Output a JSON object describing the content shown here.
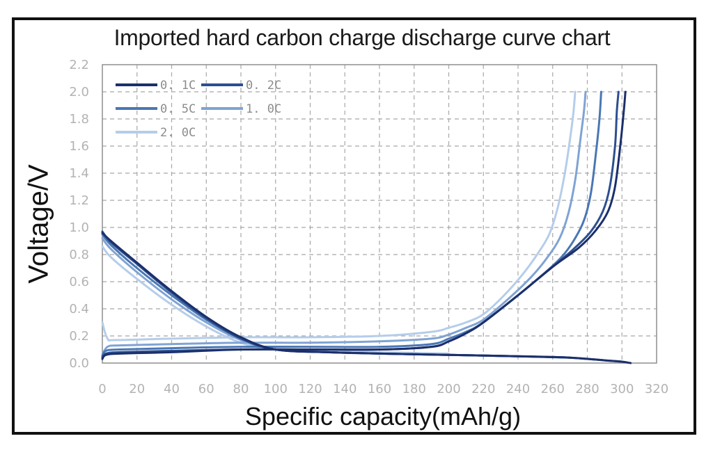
{
  "chart_data": {
    "type": "line",
    "title": "Imported hard carbon charge discharge curve chart",
    "xlabel": "Specific capacity(mAh/g)",
    "ylabel": "Voltage/V",
    "xlim": [
      0,
      320
    ],
    "ylim": [
      0,
      2.2
    ],
    "x_ticks": [
      0,
      20,
      40,
      60,
      80,
      100,
      120,
      140,
      160,
      180,
      200,
      220,
      240,
      260,
      280,
      300,
      320
    ],
    "y_ticks": [
      "0.0",
      "0.2",
      "0.4",
      "0.6",
      "0.8",
      "1.0",
      "1.2",
      "1.4",
      "1.6",
      "1.8",
      "2.0",
      "2.2"
    ],
    "grid": true,
    "legend_position": "top-left",
    "series": [
      {
        "name": "0. 1C",
        "color": "#1b2f6b",
        "discharge": {
          "x": [
            0,
            5,
            20,
            40,
            60,
            80,
            100,
            130,
            160,
            200,
            240,
            270,
            290,
            300,
            305
          ],
          "y": [
            0.96,
            0.9,
            0.74,
            0.53,
            0.34,
            0.19,
            0.1,
            0.08,
            0.07,
            0.06,
            0.05,
            0.04,
            0.02,
            0.01,
            0.0
          ]
        },
        "charge": {
          "x": [
            0,
            2,
            10,
            40,
            80,
            120,
            160,
            190,
            200,
            210,
            220,
            240,
            260,
            275,
            285,
            292,
            296,
            299,
            301,
            302
          ],
          "y": [
            0.03,
            0.06,
            0.07,
            0.08,
            0.1,
            0.1,
            0.1,
            0.12,
            0.16,
            0.22,
            0.3,
            0.5,
            0.71,
            0.85,
            0.98,
            1.12,
            1.3,
            1.6,
            1.85,
            2.0
          ]
        }
      },
      {
        "name": "0. 2C",
        "color": "#2c4f8f",
        "discharge": {
          "x": [
            0,
            5,
            20,
            40,
            60,
            80,
            100,
            130,
            160,
            200,
            240,
            270,
            290,
            300
          ],
          "y": [
            0.97,
            0.89,
            0.73,
            0.52,
            0.33,
            0.18,
            0.1,
            0.08,
            0.07,
            0.06,
            0.05,
            0.04,
            0.02,
            0.01
          ]
        },
        "charge": {
          "x": [
            0,
            2,
            10,
            40,
            80,
            120,
            160,
            190,
            200,
            210,
            220,
            240,
            260,
            272,
            282,
            289,
            293,
            296,
            297,
            298
          ],
          "y": [
            0.04,
            0.07,
            0.08,
            0.09,
            0.1,
            0.1,
            0.1,
            0.12,
            0.16,
            0.22,
            0.3,
            0.5,
            0.71,
            0.84,
            0.97,
            1.12,
            1.3,
            1.6,
            1.85,
            2.0
          ]
        }
      },
      {
        "name": "0. 5C",
        "color": "#4a77b4",
        "discharge": {
          "x": [
            0,
            5,
            20,
            40,
            60,
            80,
            100,
            130,
            160,
            200,
            240,
            270
          ],
          "y": [
            0.95,
            0.87,
            0.7,
            0.5,
            0.32,
            0.18,
            0.1,
            0.08,
            0.07,
            0.06,
            0.05,
            0.04
          ]
        },
        "charge": {
          "x": [
            0,
            2,
            10,
            40,
            80,
            120,
            160,
            190,
            200,
            210,
            220,
            240,
            255,
            265,
            272,
            278,
            282,
            285,
            287,
            288
          ],
          "y": [
            0.05,
            0.09,
            0.1,
            0.11,
            0.12,
            0.12,
            0.12,
            0.14,
            0.18,
            0.23,
            0.3,
            0.5,
            0.66,
            0.78,
            0.9,
            1.05,
            1.25,
            1.55,
            1.8,
            2.0
          ]
        }
      },
      {
        "name": "1. 0C",
        "color": "#7fa3d3",
        "discharge": {
          "x": [
            0,
            5,
            20,
            40,
            60,
            80,
            100,
            130,
            160,
            200,
            240
          ],
          "y": [
            0.92,
            0.84,
            0.67,
            0.47,
            0.3,
            0.17,
            0.1,
            0.08,
            0.07,
            0.06,
            0.05
          ]
        },
        "charge": {
          "x": [
            0,
            3,
            10,
            40,
            80,
            120,
            160,
            190,
            200,
            210,
            220,
            235,
            248,
            257,
            264,
            269,
            273,
            276,
            278,
            279
          ],
          "y": [
            0.06,
            0.12,
            0.13,
            0.14,
            0.15,
            0.15,
            0.16,
            0.18,
            0.21,
            0.26,
            0.32,
            0.48,
            0.64,
            0.78,
            0.92,
            1.1,
            1.35,
            1.65,
            1.85,
            2.0
          ]
        }
      },
      {
        "name": "2. 0C",
        "color": "#b5cdea",
        "discharge": {
          "x": [
            0,
            5,
            20,
            40,
            60,
            80,
            100,
            130,
            160,
            200
          ],
          "y": [
            0.86,
            0.78,
            0.62,
            0.43,
            0.27,
            0.15,
            0.1,
            0.09,
            0.08,
            0.07
          ]
        },
        "charge": {
          "x": [
            0,
            3,
            8,
            40,
            80,
            120,
            160,
            190,
            200,
            210,
            220,
            232,
            243,
            251,
            258,
            263,
            267,
            270,
            272,
            273
          ],
          "y": [
            0.3,
            0.18,
            0.17,
            0.18,
            0.19,
            0.19,
            0.2,
            0.23,
            0.26,
            0.3,
            0.36,
            0.5,
            0.66,
            0.8,
            0.95,
            1.15,
            1.4,
            1.65,
            1.85,
            2.0
          ]
        }
      }
    ]
  }
}
